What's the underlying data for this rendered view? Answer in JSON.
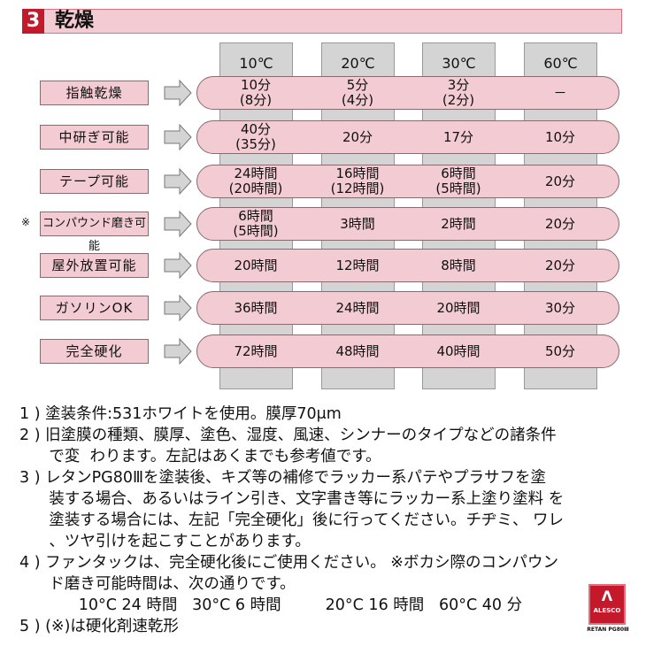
{
  "title": {
    "number": "3",
    "text": "乾燥"
  },
  "columns": [
    "10℃",
    "20℃",
    "30℃",
    "60℃"
  ],
  "rows": [
    {
      "label": "指触乾燥",
      "mark": "",
      "values": [
        [
          "10分",
          "(8分)"
        ],
        [
          "5分",
          "(4分)"
        ],
        [
          "3分",
          "(2分)"
        ],
        [
          "－"
        ]
      ]
    },
    {
      "label": "中研ぎ可能",
      "mark": "",
      "values": [
        [
          "40分",
          "(35分)"
        ],
        [
          "20分"
        ],
        [
          "17分"
        ],
        [
          "10分"
        ]
      ]
    },
    {
      "label": "テープ可能",
      "mark": "",
      "values": [
        [
          "24時間",
          "(20時間)"
        ],
        [
          "16時間",
          "(12時間)"
        ],
        [
          "6時間",
          "(5時間)"
        ],
        [
          "20分"
        ]
      ]
    },
    {
      "label": "コンパウンド磨き可能",
      "mark": "※",
      "values": [
        [
          "6時間",
          "(5時間)"
        ],
        [
          "3時間"
        ],
        [
          "2時間"
        ],
        [
          "20分"
        ]
      ]
    },
    {
      "label": "屋外放置可能",
      "mark": "",
      "values": [
        [
          "20時間"
        ],
        [
          "12時間"
        ],
        [
          "8時間"
        ],
        [
          "20分"
        ]
      ]
    },
    {
      "label": "ガソリンOK",
      "mark": "",
      "values": [
        [
          "36時間"
        ],
        [
          "24時間"
        ],
        [
          "20時間"
        ],
        [
          "30分"
        ]
      ]
    },
    {
      "label": "完全硬化",
      "mark": "",
      "values": [
        [
          "72時間"
        ],
        [
          "48時間"
        ],
        [
          "40時間"
        ],
        [
          "50分"
        ]
      ]
    }
  ],
  "notes": [
    "1 ) 塗装条件:531ホワイトを使用。膜厚70μm",
    "2 ) 旧塗膜の種類、膜厚、塗色、湿度、風速、シンナーのタイプなどの諸条件",
    "      で変  わります。左記はあくまでも参考値です。",
    "3 ) レタンPG80Ⅲを塗装後、キズ等の補修でラッカー系パテやプラサフを塗",
    "      装する場合、あるいはライン引き、文字書き等にラッカー系上塗り塗料 を",
    "      塗装する場合には、左記「完全硬化」後に行ってください。チヂミ、 ワレ",
    "      、ツヤ引けを起こすことがあります。",
    "4 ) ファンタックは、完全硬化後にご使用ください。 ※ボカシ際のコンパウン",
    "      ド磨き可能時間は、次の通りです。",
    "            10°C 24 時間   30°C 6 時間         20°C 16 時間   60°C 40 分",
    "5 ) (※)は硬化剤速乾形"
  ],
  "logo": {
    "text": "ALESCO",
    "sub": "RETAN PG80Ⅲ"
  },
  "colors": {
    "pink": "#f3cbd3",
    "red": "#c4182b",
    "gray": "#d4d4d4"
  }
}
